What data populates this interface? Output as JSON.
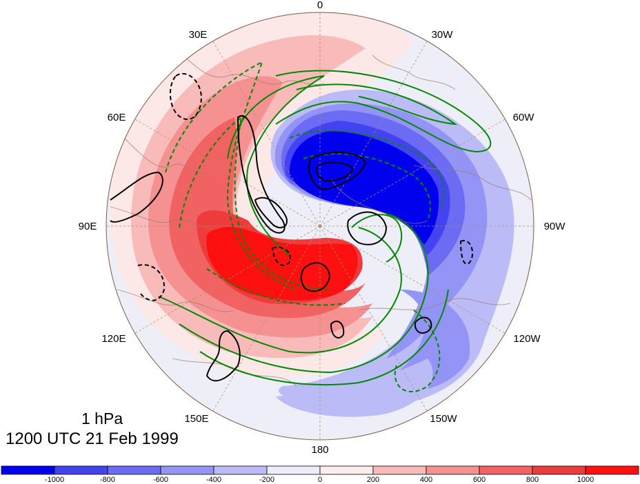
{
  "figure": {
    "level_label": "1 hPa",
    "time_label": "1200 UTC 21 Feb 1999"
  },
  "chart_data": {
    "type": "heatmap",
    "projection": "north-polar-stereographic",
    "longitude_labels": [
      "0",
      "30W",
      "60W",
      "90W",
      "120W",
      "150W",
      "180",
      "150E",
      "120E",
      "90E",
      "60E",
      "30E"
    ],
    "colorbar": {
      "tick_labels": [
        "-1000",
        "-800",
        "-600",
        "-400",
        "-200",
        "0",
        "200",
        "400",
        "600",
        "800",
        "1000"
      ],
      "colors": [
        "#0000ee",
        "#4343f2",
        "#6b6bf4",
        "#9494f6",
        "#bbbbf8",
        "#ececfb",
        "#fdecec",
        "#f9baba",
        "#f59191",
        "#f16262",
        "#ee3c3c",
        "#ff1010"
      ]
    },
    "shading_features": [
      {
        "sign": "negative",
        "level": -1000,
        "description_lon": "60W-90W core"
      },
      {
        "sign": "positive",
        "level": 1000,
        "description_lon": "120E-180 core"
      }
    ],
    "contour_colors": {
      "field_a": "#000000",
      "field_b": "#008800"
    }
  }
}
